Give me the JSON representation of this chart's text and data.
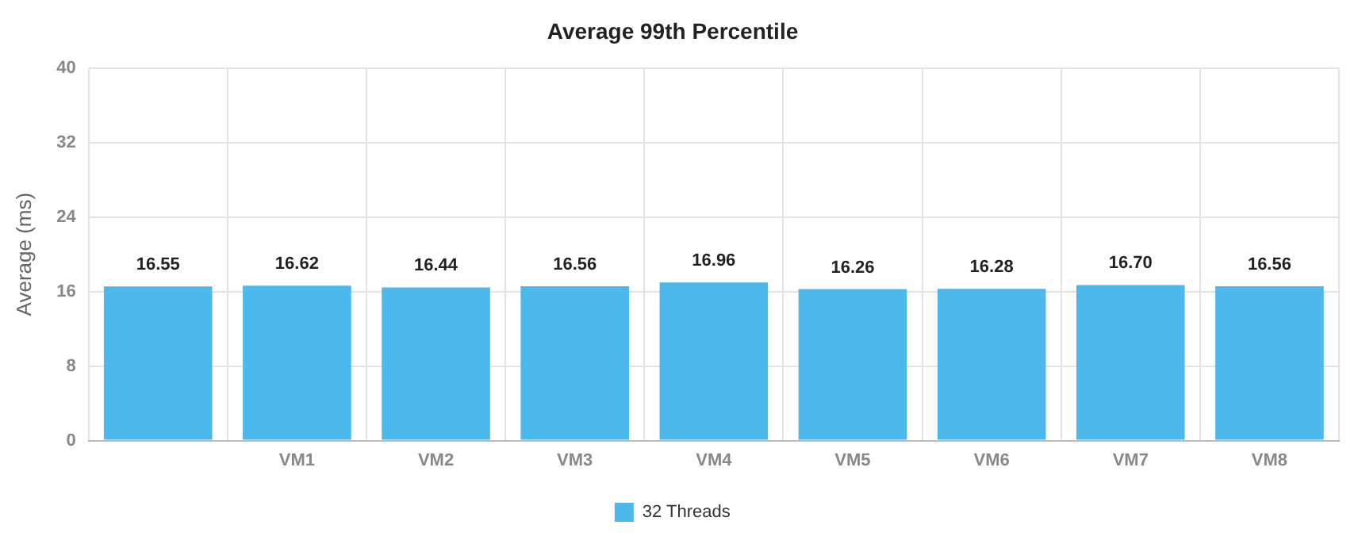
{
  "chart_data": {
    "type": "bar",
    "title": "Average 99th Percentile",
    "ylabel": "Average (ms)",
    "categories": [
      null,
      "VM1",
      "VM2",
      "VM3",
      "VM4",
      "VM5",
      "VM6",
      "VM7",
      "VM8"
    ],
    "series": [
      {
        "name": "32 Threads",
        "color": "#4db8eb",
        "values": [
          16.55,
          16.62,
          16.44,
          16.56,
          16.96,
          16.26,
          16.28,
          16.7,
          16.56
        ]
      }
    ],
    "value_labels": [
      "16.55",
      "16.62",
      "16.44",
      "16.56",
      "16.96",
      "16.26",
      "16.28",
      "16.70",
      "16.56"
    ],
    "ylim": [
      0,
      40
    ],
    "yticks": [
      0,
      8,
      16,
      24,
      32,
      40
    ],
    "grid": true,
    "legend": "bottom"
  }
}
